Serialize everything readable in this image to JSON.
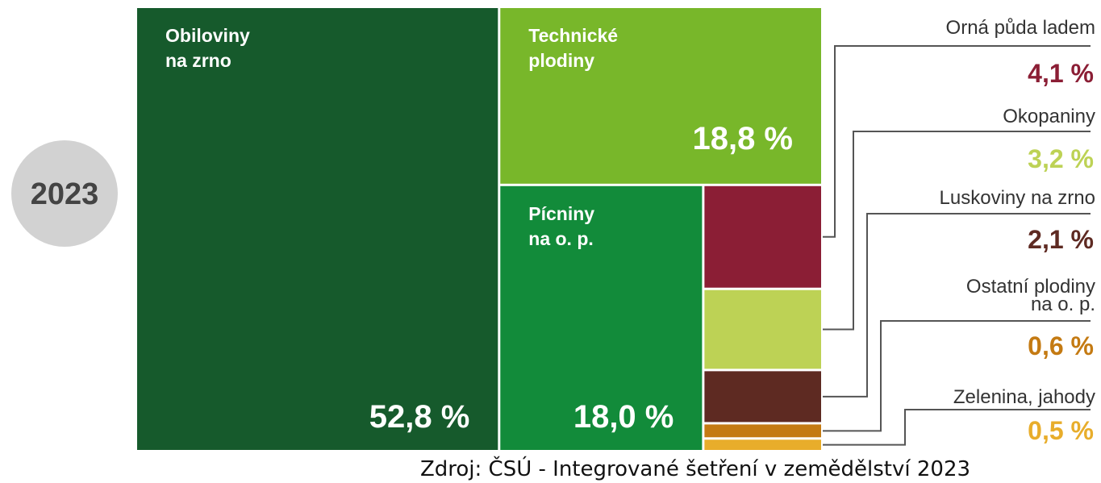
{
  "chart_data": {
    "type": "treemap",
    "year": "2023",
    "categories": [
      "Obiloviny\nna zrno",
      "Technické\nplodiny",
      "Pícniny\nna o. p.",
      "Orná půda ladem",
      "Okopaniny",
      "Luskoviny na zrno",
      "Ostatní plodiny\nna o. p.",
      "Zelenina, jahody"
    ],
    "values": [
      52.8,
      18.8,
      18.0,
      4.1,
      3.2,
      2.1,
      0.6,
      0.5
    ],
    "value_labels": [
      "52,8 %",
      "18,8 %",
      "18,0 %",
      "4,1 %",
      "3,2 %",
      "2,1 %",
      "0,6 %",
      "0,5 %"
    ],
    "colors": [
      "#165a2c",
      "#78b72a",
      "#128b3a",
      "#8b1e35",
      "#bdd255",
      "#5e2a22",
      "#c47a12",
      "#e8ad2b"
    ],
    "source": "Zdroj: ČSÚ - Integrované šetření v zemědělství 2023"
  }
}
